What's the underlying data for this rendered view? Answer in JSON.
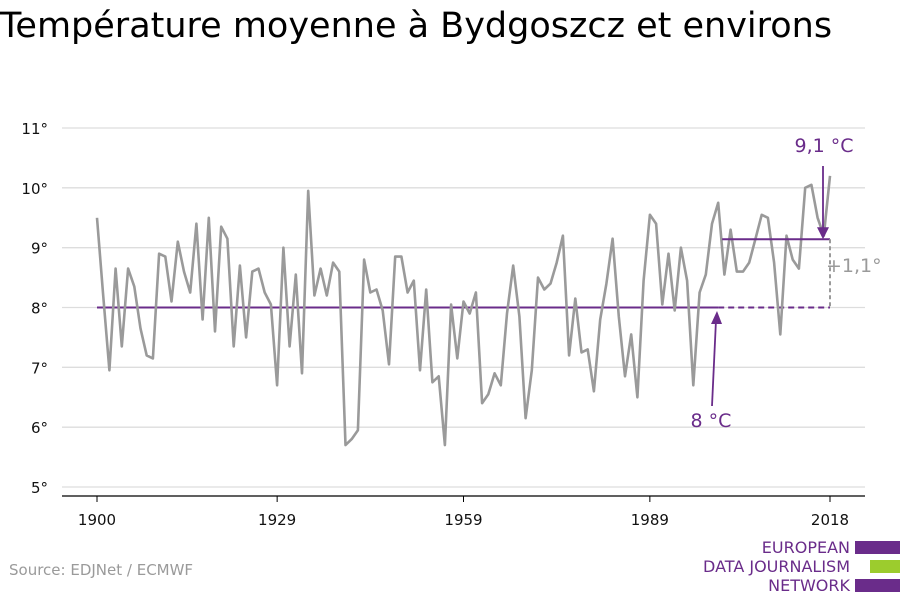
{
  "title": "Température moyenne à Bydgoszcz et environs",
  "source": "Source: EDJNet / ECMWF",
  "logo": {
    "lines": [
      "EUROPEAN",
      "DATA JOURNALISM",
      "NETWORK"
    ],
    "colors": [
      "#6a2c8a",
      "#9ccc2d",
      "#6a2c8a"
    ]
  },
  "colors": {
    "series": "#9a9a9a",
    "accent": "#6a2c8a",
    "grid": "#dddddd",
    "axis": "#000000"
  },
  "chart_data": {
    "type": "line",
    "title": "Température moyenne à Bydgoszcz et environs",
    "xlabel": "",
    "ylabel": "",
    "xlim": [
      1900,
      2018
    ],
    "ylim": [
      5,
      11
    ],
    "x_ticks": [
      1900,
      1929,
      1959,
      1989,
      2018
    ],
    "x_tick_labels": [
      "1900",
      "1929",
      "1959",
      "1989",
      "2018"
    ],
    "y_ticks": [
      5,
      6,
      7,
      8,
      9,
      10,
      11
    ],
    "y_tick_labels": [
      "5°",
      "6°",
      "7°",
      "8°",
      "9°",
      "10°",
      "11°"
    ],
    "grid": true,
    "series": [
      {
        "x": [
          1900,
          1901,
          1902,
          1903,
          1904,
          1905,
          1906,
          1907,
          1908,
          1909,
          1910,
          1911,
          1912,
          1913,
          1914,
          1915,
          1916,
          1917,
          1918,
          1919,
          1920,
          1921,
          1922,
          1923,
          1924,
          1925,
          1926,
          1927,
          1928,
          1929,
          1930,
          1931,
          1932,
          1933,
          1934,
          1935,
          1936,
          1937,
          1938,
          1939,
          1940,
          1941,
          1942,
          1943,
          1944,
          1945,
          1946,
          1947,
          1948,
          1949,
          1950,
          1951,
          1952,
          1953,
          1954,
          1955,
          1956,
          1957,
          1958,
          1959,
          1960,
          1961,
          1962,
          1963,
          1964,
          1965,
          1966,
          1967,
          1968,
          1969,
          1970,
          1971,
          1972,
          1973,
          1974,
          1975,
          1976,
          1977,
          1978,
          1979,
          1980,
          1981,
          1982,
          1983,
          1984,
          1985,
          1986,
          1987,
          1988,
          1989,
          1990,
          1991,
          1992,
          1993,
          1994,
          1995,
          1996,
          1997,
          1998,
          1999,
          2000,
          2001,
          2002,
          2003,
          2004,
          2005,
          2006,
          2007,
          2008,
          2009,
          2010,
          2011,
          2012,
          2013,
          2014,
          2015,
          2016,
          2017,
          2018
        ],
        "values": [
          9.5,
          8.2,
          6.95,
          8.65,
          7.35,
          8.65,
          8.35,
          7.65,
          7.2,
          7.15,
          8.9,
          8.85,
          8.1,
          9.1,
          8.6,
          8.25,
          9.4,
          7.8,
          9.5,
          7.6,
          9.35,
          9.15,
          7.35,
          8.7,
          7.5,
          8.6,
          8.65,
          8.25,
          8.05,
          6.7,
          9.0,
          7.35,
          8.55,
          6.9,
          9.95,
          8.2,
          8.65,
          8.2,
          8.75,
          8.6,
          5.7,
          5.8,
          5.95,
          8.8,
          8.25,
          8.3,
          7.95,
          7.05,
          8.85,
          8.85,
          8.25,
          8.45,
          6.95,
          8.3,
          6.75,
          6.85,
          5.7,
          8.05,
          7.15,
          8.1,
          7.9,
          8.25,
          6.4,
          6.55,
          6.9,
          6.7,
          7.9,
          8.7,
          7.85,
          6.15,
          6.95,
          8.5,
          8.3,
          8.4,
          8.75,
          9.2,
          7.2,
          8.15,
          7.25,
          7.3,
          6.6,
          7.8,
          8.4,
          9.15,
          7.85,
          6.85,
          7.55,
          6.5,
          8.45,
          9.55,
          9.4,
          8.05,
          8.9,
          7.95,
          9.0,
          8.45,
          6.7,
          8.25,
          8.55,
          9.4,
          9.75,
          8.55,
          9.3,
          8.6,
          8.6,
          8.75,
          9.15,
          9.55,
          9.5,
          8.75,
          7.55,
          9.2,
          8.8,
          8.65,
          10.0,
          10.05,
          9.5,
          9.2,
          10.2
        ]
      }
    ],
    "annotations": [
      {
        "label": "8 °C",
        "baseline_value": 8.0,
        "period": [
          1900,
          2000
        ],
        "projection_to": 2018
      },
      {
        "label": "9,1 °C",
        "recent_value": 9.14,
        "period": [
          2000,
          2018
        ]
      },
      {
        "label": "+1,1°",
        "difference": 1.1
      }
    ]
  }
}
